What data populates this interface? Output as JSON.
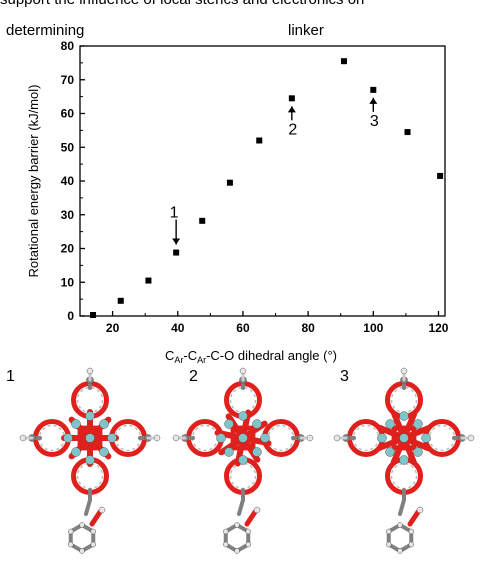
{
  "caption": {
    "line1": "support the influence of local sterics and electronics on",
    "word_left": "determining",
    "word_right": "linker"
  },
  "chart_data": {
    "type": "scatter",
    "xlabel": "C_Ar-C_Ar-C-O dihedral angle (°)",
    "ylabel": "Rotational energy barrier (kJ/mol)",
    "xlim": [
      10,
      122
    ],
    "ylim": [
      0,
      80
    ],
    "x_ticks": [
      20,
      40,
      60,
      80,
      100,
      120
    ],
    "y_ticks": [
      0,
      10,
      20,
      30,
      40,
      50,
      60,
      70,
      80
    ],
    "grid": false,
    "marker": "square",
    "points": [
      {
        "x": 14,
        "y": 0.3
      },
      {
        "x": 22.5,
        "y": 4.5
      },
      {
        "x": 31,
        "y": 10.5
      },
      {
        "x": 39.5,
        "y": 18.8
      },
      {
        "x": 47.5,
        "y": 28.2
      },
      {
        "x": 56,
        "y": 39.5
      },
      {
        "x": 65,
        "y": 52
      },
      {
        "x": 75,
        "y": 64.5
      },
      {
        "x": 91,
        "y": 75.5
      },
      {
        "x": 100,
        "y": 67
      },
      {
        "x": 110.5,
        "y": 54.5
      },
      {
        "x": 120.5,
        "y": 41.5
      }
    ],
    "annotations": [
      {
        "label": "1",
        "x": 39.5,
        "y": 18.8,
        "arrow": "down"
      },
      {
        "label": "2",
        "x": 75,
        "y": 64.5,
        "arrow": "up"
      },
      {
        "label": "3",
        "x": 100,
        "y": 67,
        "arrow": "up"
      }
    ]
  },
  "structures": {
    "labels": [
      "1",
      "2",
      "3"
    ],
    "colors": {
      "oxygen": "#e0201c",
      "metal": "#7fc4c9",
      "carbon": "#808080",
      "hydrogen": "#e6e6e6"
    }
  }
}
